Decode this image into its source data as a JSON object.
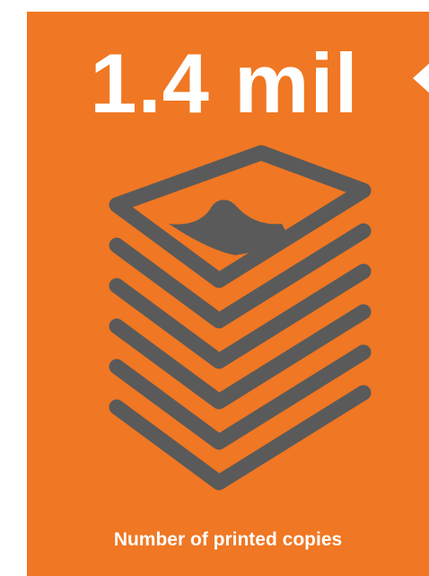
{
  "stat": {
    "value": "1.4 mil",
    "caption": "Number of printed copies"
  },
  "icon": "stack-of-papers-icon",
  "colors": {
    "background": "#f07723",
    "text": "#ffffff",
    "icon": "#5a5a5a"
  }
}
